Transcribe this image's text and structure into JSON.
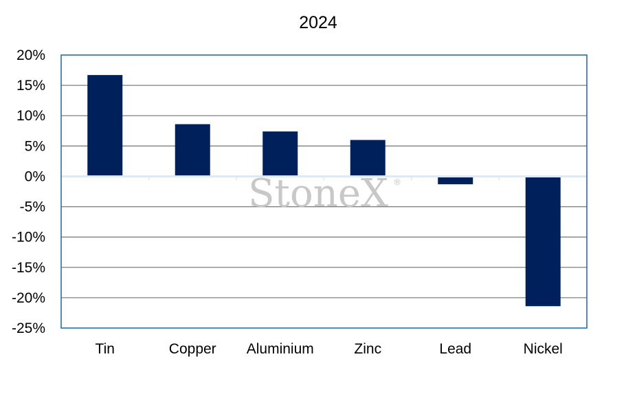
{
  "chart_data": {
    "type": "bar",
    "title": "2024",
    "categories": [
      "Tin",
      "Copper",
      "Aluminium",
      "Zinc",
      "Lead",
      "Nickel"
    ],
    "values": [
      16.7,
      8.6,
      7.4,
      6.0,
      -1.3,
      -21.4
    ],
    "ylim": [
      -25,
      20
    ],
    "yticks": [
      20,
      15,
      10,
      5,
      0,
      -5,
      -10,
      -15,
      -20,
      -25
    ],
    "ytick_labels": [
      "20%",
      "15%",
      "10%",
      "5%",
      "0%",
      "-5%",
      "-10%",
      "-15%",
      "-20%",
      "-25%"
    ],
    "xlabel": "",
    "ylabel": "",
    "grid": true,
    "legend": false
  },
  "watermark": {
    "text": "StoneX",
    "mark": "®"
  },
  "colors": {
    "bar": "#00205b",
    "frame": "#1f6fb5",
    "grid": "#7f7f7f",
    "watermark": "#c8c8c8"
  }
}
